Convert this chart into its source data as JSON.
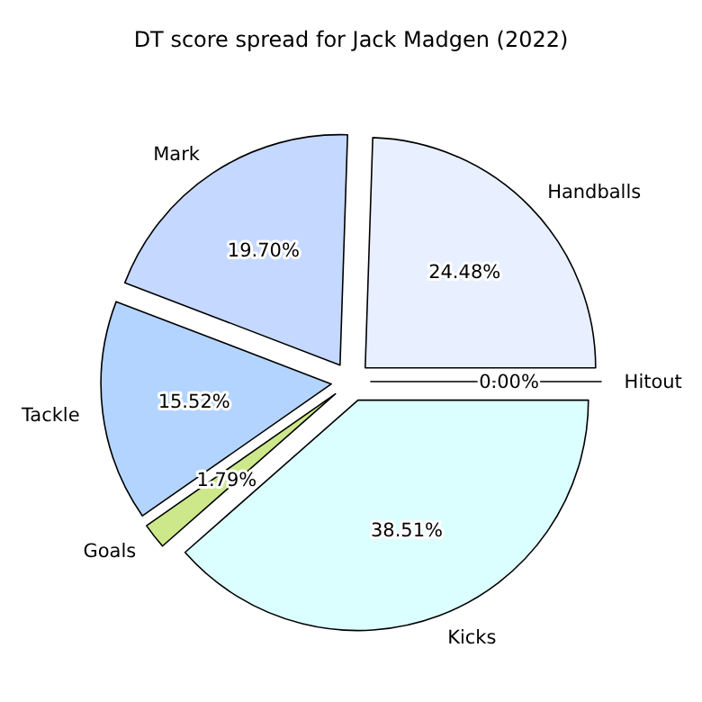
{
  "chart_data": {
    "type": "pie",
    "title": "DT score spread for Jack Madgen (2022)",
    "categories": [
      "Handballs",
      "Mark",
      "Tackle",
      "Goals",
      "Kicks",
      "Hitout"
    ],
    "values": [
      24.48,
      19.7,
      15.52,
      1.79,
      38.51,
      0.0
    ],
    "colors": [
      "#e8f0ff",
      "#c5d8ff",
      "#b3d4ff",
      "#cde88a",
      "#dbffff",
      "#f0f0f0"
    ],
    "value_labels": [
      "24.48%",
      "19.70%",
      "15.52%",
      "1.79%",
      "38.51%",
      "0.00%"
    ]
  }
}
